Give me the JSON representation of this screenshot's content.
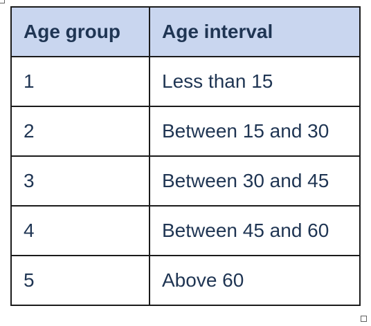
{
  "table": {
    "headers": [
      "Age group",
      "Age interval"
    ],
    "rows": [
      [
        "1",
        "Less than 15"
      ],
      [
        "2",
        "Between 15 and 30"
      ],
      [
        "3",
        "Between 30 and 45"
      ],
      [
        "4",
        "Between 45 and 60"
      ],
      [
        "5",
        "Above 60"
      ]
    ]
  },
  "colors": {
    "header_background": "#c9d6ef",
    "text": "#1f3553",
    "border": "#1a1a1a"
  }
}
